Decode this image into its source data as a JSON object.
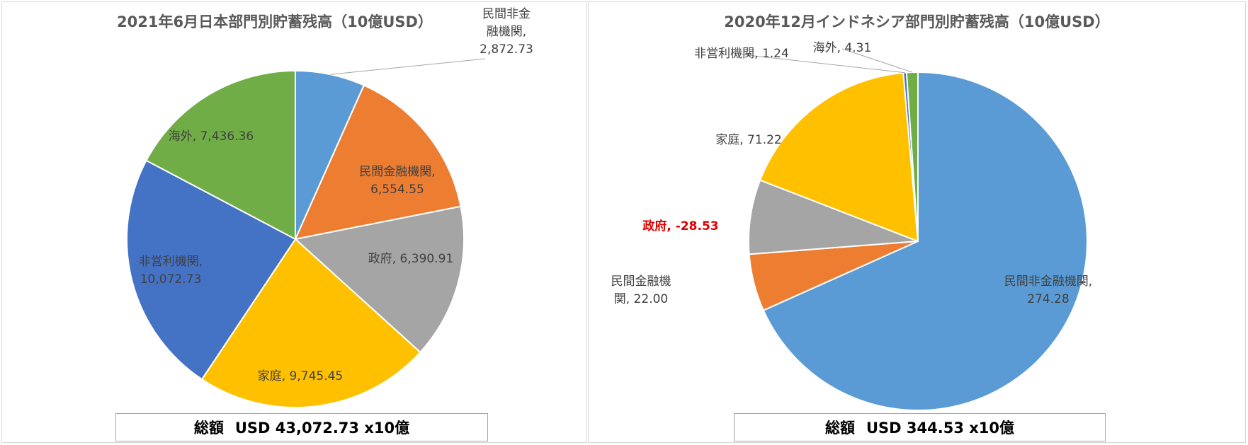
{
  "colors": {
    "民間非金融機関": "#5b9bd5",
    "民間金融機関": "#ed7d31",
    "政府": "#a5a5a5",
    "家庭": "#ffc000",
    "非営利機関": "#4472c4",
    "海外": "#70ad47",
    "negative_label": "#e00000"
  },
  "charts": [
    {
      "title": "2021年6月日本部門別貯蓄残高（10億USD）",
      "total_prefix": "総額",
      "total_text": "USD 43,072.73 x10億"
    },
    {
      "title": "2020年12月インドネシア部門別貯蓄残高（10億USD）",
      "total_prefix": "総額",
      "total_text": "USD 344.53 x10億"
    }
  ],
  "chart_data": [
    {
      "type": "pie",
      "title": "2021年6月日本部門別貯蓄残高（10億USD）",
      "categories": [
        "民間非金融機関",
        "民間金融機関",
        "政府",
        "家庭",
        "非営利機関",
        "海外"
      ],
      "values": [
        2872.73,
        6554.55,
        6390.91,
        9745.45,
        10072.73,
        7436.36
      ],
      "labels": [
        "民間非金\n融機関,\n2,872.73",
        "民間金融機関,\n6,554.55",
        "政府, 6,390.91",
        "家庭, 9,745.45",
        "非営利機関,\n10,072.73",
        "海外, 7,436.36"
      ]
    },
    {
      "type": "pie",
      "title": "2020年12月インドネシア部門別貯蓄残高（10億USD）",
      "categories": [
        "民間非金融機関",
        "民間金融機関",
        "政府",
        "家庭",
        "非営利機関",
        "海外"
      ],
      "values": [
        274.28,
        22.0,
        -28.53,
        71.22,
        1.24,
        4.31
      ],
      "labels": [
        "民間非金融機関,\n274.28",
        "民間金融機\n関, 22.00",
        "政府, -28.53",
        "家庭, 71.22",
        "非営利機関, 1.24",
        "海外, 4.31"
      ]
    }
  ]
}
